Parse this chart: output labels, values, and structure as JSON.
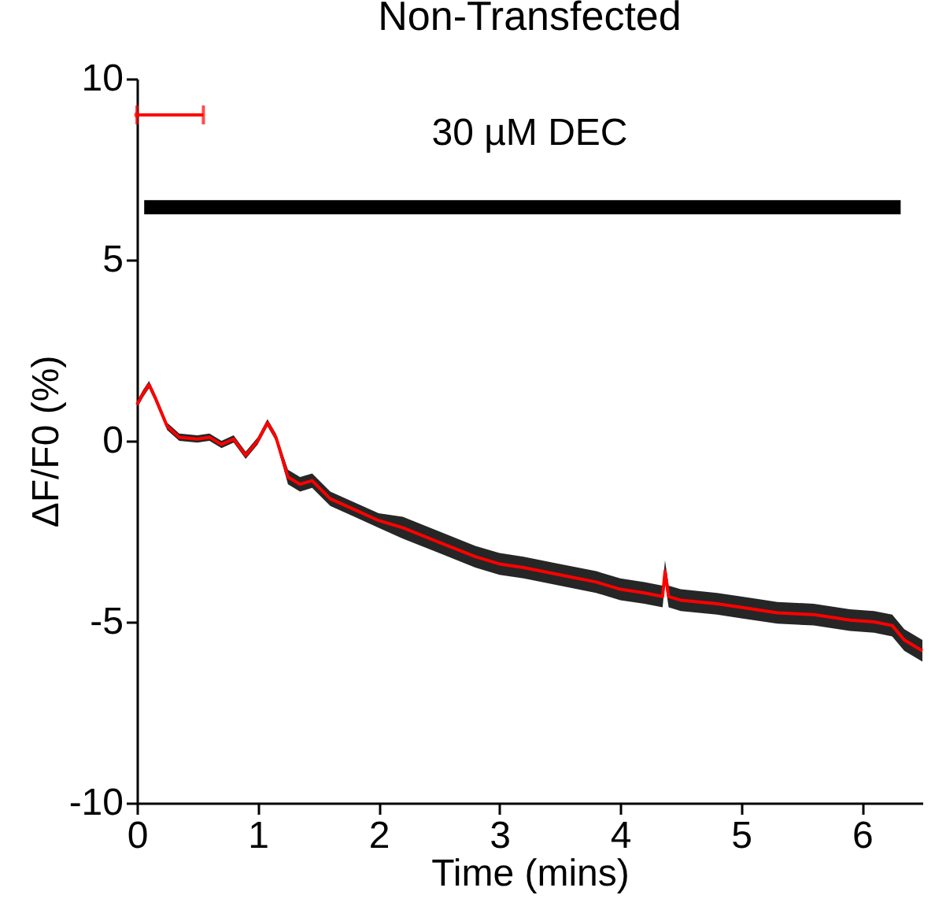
{
  "chart_data": {
    "type": "line",
    "title": "Non-Transfected",
    "xlabel": "Time (mins)",
    "ylabel": "ΔF/F0 (%)",
    "annotations": [
      "30 µM DEC"
    ],
    "xlim": [
      0,
      6.5
    ],
    "xticks": [
      0,
      1,
      2,
      3,
      4,
      5,
      6
    ],
    "ylim": [
      -10,
      10
    ],
    "yticks": [
      -10,
      -5,
      0,
      5,
      10
    ],
    "grid": false,
    "marker": "none",
    "line_style": "solid",
    "series": [
      {
        "color": "#ff0000",
        "x": [
          0,
          0.05,
          0.1,
          0.15,
          0.25,
          0.35,
          0.5,
          0.6,
          0.7,
          0.8,
          0.9,
          1.0,
          1.08,
          1.15,
          1.25,
          1.35,
          1.45,
          1.6,
          1.8,
          2.0,
          2.2,
          2.5,
          2.8,
          3.0,
          3.2,
          3.5,
          3.8,
          4.0,
          4.2,
          4.35,
          4.37,
          4.4,
          4.5,
          4.8,
          5.0,
          5.3,
          5.6,
          5.9,
          6.1,
          6.25,
          6.35,
          6.5
        ],
        "values": [
          1.0,
          1.3,
          1.55,
          1.2,
          0.4,
          0.1,
          0.05,
          0.1,
          -0.1,
          0.05,
          -0.4,
          0.0,
          0.5,
          0.1,
          -1.0,
          -1.2,
          -1.1,
          -1.6,
          -1.9,
          -2.2,
          -2.4,
          -2.8,
          -3.2,
          -3.4,
          -3.5,
          -3.7,
          -3.9,
          -4.1,
          -4.2,
          -4.3,
          -3.6,
          -4.3,
          -4.4,
          -4.5,
          -4.6,
          -4.75,
          -4.8,
          -4.95,
          -5.0,
          -5.1,
          -5.5,
          -5.8
        ],
        "lower": [
          0.9,
          1.2,
          1.45,
          1.1,
          0.3,
          0.0,
          -0.05,
          0.0,
          -0.2,
          -0.05,
          -0.5,
          -0.1,
          0.4,
          0.0,
          -1.2,
          -1.4,
          -1.3,
          -1.8,
          -2.1,
          -2.4,
          -2.7,
          -3.1,
          -3.5,
          -3.7,
          -3.8,
          -4.0,
          -4.2,
          -4.4,
          -4.5,
          -4.6,
          -3.9,
          -4.6,
          -4.7,
          -4.8,
          -4.9,
          -5.05,
          -5.1,
          -5.25,
          -5.3,
          -5.4,
          -5.8,
          -6.1
        ],
        "upper": [
          1.1,
          1.4,
          1.65,
          1.3,
          0.5,
          0.2,
          0.15,
          0.2,
          0.0,
          0.15,
          -0.3,
          0.1,
          0.6,
          0.2,
          -0.8,
          -1.0,
          -0.9,
          -1.4,
          -1.7,
          -2.0,
          -2.1,
          -2.5,
          -2.9,
          -3.1,
          -3.2,
          -3.4,
          -3.6,
          -3.8,
          -3.9,
          -4.0,
          -3.3,
          -4.0,
          -4.1,
          -4.2,
          -4.3,
          -4.45,
          -4.5,
          -4.65,
          -4.7,
          -4.8,
          -5.2,
          -5.5
        ]
      },
      {
        "color": "#000000",
        "x": [
          0.06,
          6.32
        ],
        "values": [
          6.45,
          6.45
        ]
      },
      {
        "type": "scatter",
        "color": "#ff0000",
        "x": [
          0
        ],
        "values": [
          9
        ],
        "xerrors": [
          [
            0,
            0.55
          ]
        ]
      }
    ]
  }
}
